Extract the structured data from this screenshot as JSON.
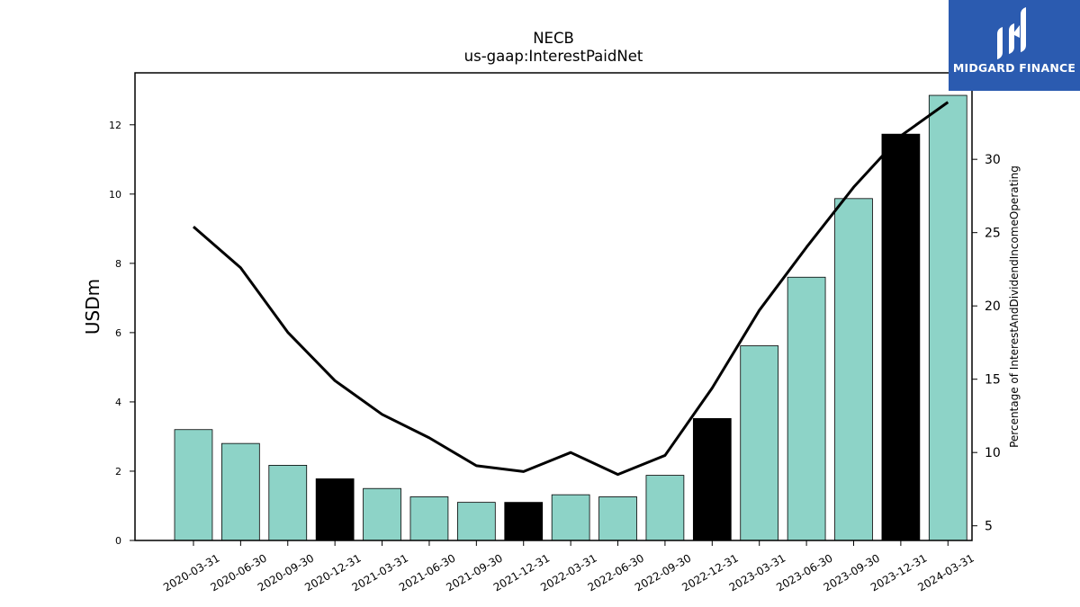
{
  "brand": {
    "name": "MIDGARD FINANCE",
    "background": "#2b5bb0",
    "icon": "midgard-logo-icon"
  },
  "chart_data": {
    "type": "bar",
    "title": "NECB",
    "subtitle": "us-gaap:InterestPaidNet",
    "ylabel": "USDm",
    "y2label": "Percentage of InterestAndDividendIncomeOperating",
    "ylim": [
      0,
      13.5
    ],
    "y2lim": [
      4,
      35.9
    ],
    "yticks": [
      0,
      2,
      4,
      6,
      8,
      10,
      12
    ],
    "y2ticks": [
      5,
      10,
      15,
      20,
      25,
      30
    ],
    "categories": [
      "2020-03-31",
      "2020-06-30",
      "2020-09-30",
      "2020-12-31",
      "2021-03-31",
      "2021-06-30",
      "2021-09-30",
      "2021-12-31",
      "2022-03-31",
      "2022-06-30",
      "2022-09-30",
      "2022-12-31",
      "2023-03-31",
      "2023-06-30",
      "2023-09-30",
      "2023-12-31",
      "2024-03-31"
    ],
    "series": [
      {
        "values": [
          3.2,
          2.8,
          2.17,
          1.78,
          1.5,
          1.26,
          1.1,
          1.1,
          1.32,
          1.26,
          1.88,
          3.52,
          5.62,
          7.6,
          9.87,
          11.73,
          12.85
        ],
        "highlight": [
          false,
          false,
          false,
          true,
          false,
          false,
          false,
          true,
          false,
          false,
          false,
          true,
          false,
          false,
          false,
          true,
          false
        ]
      },
      {
        "type": "line",
        "axis": "right",
        "values": [
          25.4,
          22.6,
          18.2,
          14.9,
          12.6,
          11.0,
          9.1,
          8.7,
          10.0,
          8.5,
          9.8,
          14.4,
          19.7,
          24.0,
          28.1,
          31.6,
          33.9
        ]
      }
    ],
    "colors": {
      "bar": "#8dd3c7",
      "highlight": "#000000",
      "line": "#000000",
      "edge": "#000000"
    },
    "grid": false,
    "legend": "none"
  }
}
